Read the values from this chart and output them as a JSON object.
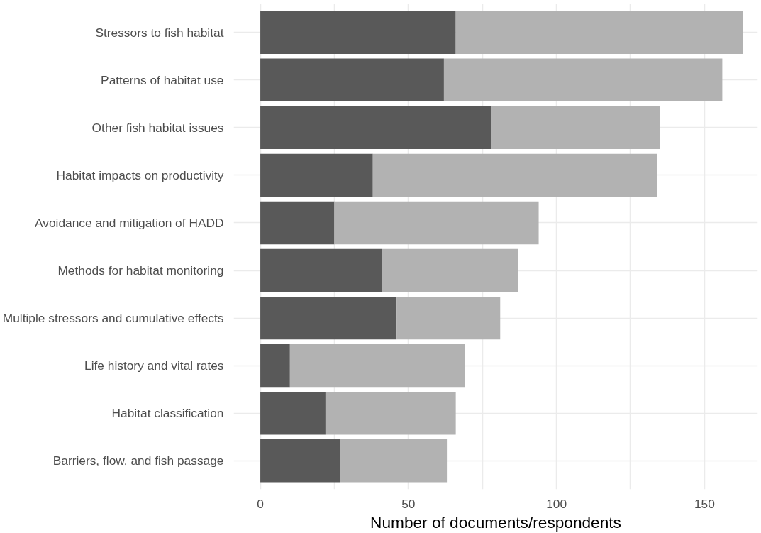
{
  "chart_data": {
    "type": "bar",
    "orientation": "horizontal",
    "stacked": true,
    "xlabel": "Number of documents/respondents",
    "categories": [
      "Stressors to fish habitat",
      "Patterns of habitat use",
      "Other fish habitat issues",
      "Habitat impacts on productivity",
      "Avoidance and mitigation of HADD",
      "Methods for habitat monitoring",
      "Multiple stressors and cumulative effects",
      "Life history and vital rates",
      "Habitat classification",
      "Barriers, flow, and fish passage"
    ],
    "series": [
      {
        "color": "#595959",
        "values": [
          66,
          62,
          78,
          38,
          25,
          41,
          46,
          10,
          22,
          27
        ]
      },
      {
        "color": "#b2b2b2",
        "values": [
          97,
          94,
          57,
          96,
          69,
          46,
          35,
          59,
          44,
          36
        ]
      }
    ],
    "xlim": [
      -9,
      168
    ],
    "xticks": [
      0,
      {
        "value": 25,
        "label": null
      },
      50,
      {
        "value": 75,
        "label": null
      },
      100,
      {
        "value": 125,
        "label": null
      },
      150
    ],
    "grid": true
  }
}
